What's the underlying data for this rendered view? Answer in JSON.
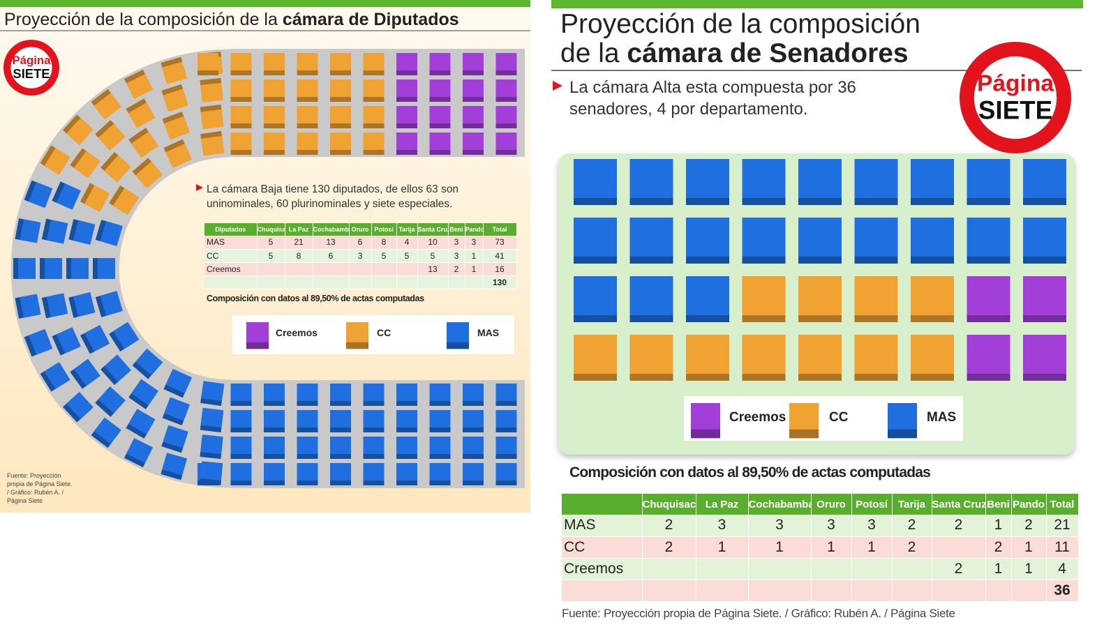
{
  "left": {
    "title": "Proyección de la composición de la ",
    "title_bold": "cámara de Diputados",
    "logo": {
      "top": "Página",
      "bottom": "SIETE"
    },
    "description": [
      "La cámara Baja tiene 130 diputados, de ellos 63 son",
      "uninominales, 60 plurinominales y siete especiales."
    ],
    "table": {
      "header": [
        "Diputados",
        "Chuquisaca",
        "La Paz",
        "Cochabamba",
        "Oruro",
        "Potosí",
        "Tarija",
        "Santa Cruz",
        "Beni",
        "Pando",
        "Total"
      ],
      "rows": [
        [
          "MAS",
          5,
          21,
          13,
          6,
          8,
          4,
          10,
          3,
          3,
          73
        ],
        [
          "CC",
          5,
          8,
          6,
          3,
          5,
          5,
          5,
          3,
          1,
          41
        ],
        [
          "Creemos",
          null,
          null,
          null,
          null,
          null,
          null,
          13,
          2,
          1,
          16
        ]
      ],
      "total": 130
    },
    "note": "Composición con datos al 89,50% de actas computadas",
    "legend": [
      {
        "label": "Creemos",
        "color": "#a23fd8"
      },
      {
        "label": "CC",
        "color": "#f0a232"
      },
      {
        "label": "MAS",
        "color": "#1f6fe0"
      }
    ],
    "source": [
      "Fuente: Proyección",
      "propia de Página Siete.",
      "/ Gráfico: Rubén A. /",
      "Página Siete"
    ]
  },
  "right": {
    "title_line1": "Proyección de la composición",
    "title_line2": "de la ",
    "title_bold": "cámara de Senadores",
    "logo": {
      "top": "Página",
      "bottom": "SIETE"
    },
    "description": [
      "La cámara Alta esta compuesta por 36",
      "senadores, 4 por departamento."
    ],
    "legend": [
      {
        "label": "Creemos",
        "color": "#a23fd8"
      },
      {
        "label": "CC",
        "color": "#f0a232"
      },
      {
        "label": "MAS",
        "color": "#1f6fe0"
      }
    ],
    "note": "Composición con datos al 89,50% de actas computadas",
    "table": {
      "header": [
        null,
        "Chuquisaca",
        "La Paz",
        "Cochabamba",
        "Oruro",
        "Potosí",
        "Tarija",
        "Santa Cruz",
        "Beni",
        "Pando",
        "Total"
      ],
      "rows": [
        [
          "MAS",
          2,
          3,
          3,
          3,
          3,
          2,
          2,
          1,
          2,
          21
        ],
        [
          "CC",
          2,
          1,
          1,
          1,
          1,
          2,
          null,
          2,
          1,
          11
        ],
        [
          "Creemos",
          null,
          null,
          null,
          null,
          null,
          null,
          2,
          1,
          1,
          4
        ]
      ],
      "total": 36
    },
    "source": "Fuente: Proyección propia de Página Siete.  / Gráfico: Rubén A. / Página Siete"
  }
}
